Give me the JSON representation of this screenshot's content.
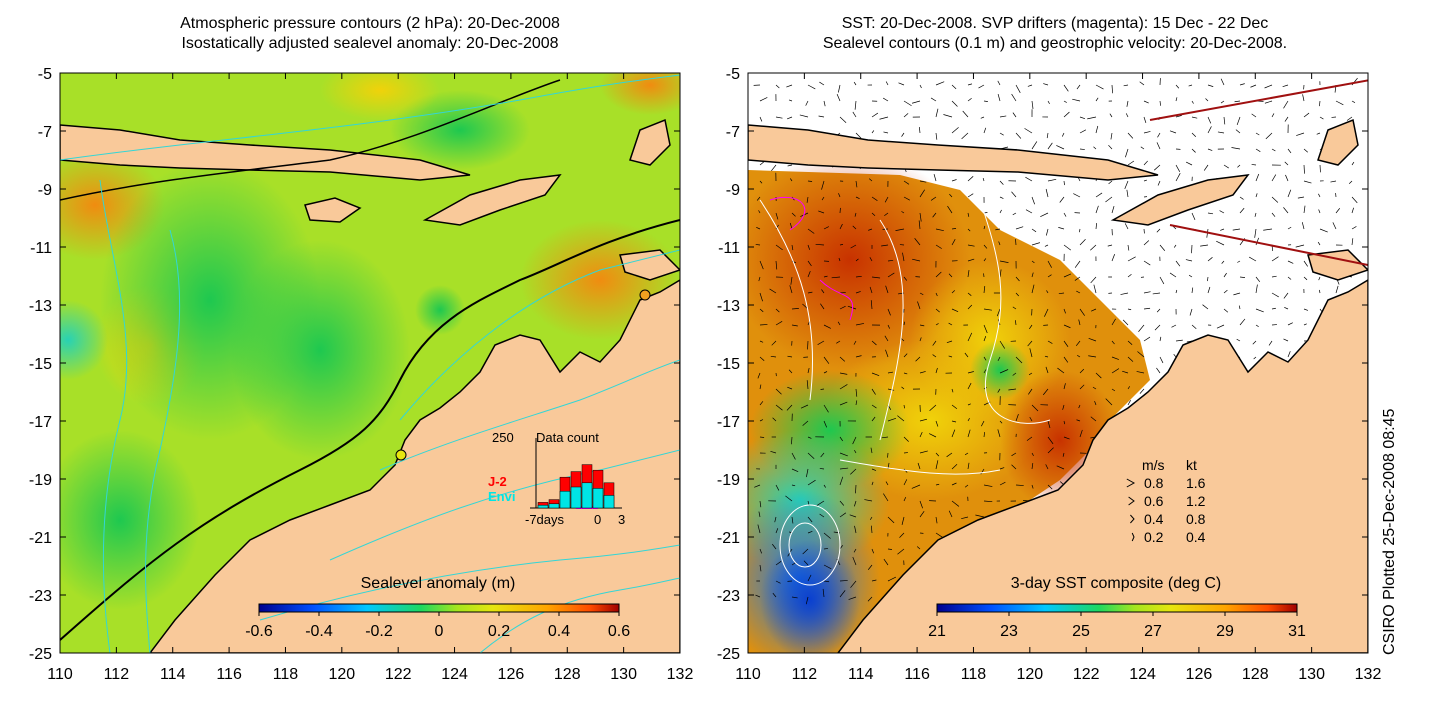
{
  "left_panel": {
    "title_line1": "Atmospheric pressure contours (2 hPa): 20-Dec-2008",
    "title_line2": "Isostatically adjusted sealevel anomaly: 20-Dec-2008",
    "x_ticks": [
      "110",
      "112",
      "114",
      "116",
      "118",
      "120",
      "122",
      "124",
      "126",
      "128",
      "130",
      "132"
    ],
    "y_ticks": [
      "-5",
      "-7",
      "-9",
      "-11",
      "-13",
      "-15",
      "-17",
      "-19",
      "-21",
      "-23",
      "-25"
    ],
    "colorbar_title": "Sealevel anomaly (m)",
    "colorbar_ticks": [
      "-0.6",
      "-0.4",
      "-0.2",
      "0",
      "0.2",
      "0.4",
      "0.6"
    ],
    "inset": {
      "max_label": "250",
      "title": "Data count",
      "series_j2": "J-2",
      "series_envi": "Envi",
      "x_start": "-7days",
      "x_zero": "0",
      "x_end": "3",
      "bars_j2": [
        20,
        30,
        110,
        130,
        155,
        135,
        90
      ],
      "bars_envi": [
        10,
        15,
        60,
        75,
        90,
        70,
        45
      ],
      "colors": {
        "j2": "#ff0000",
        "envi": "#00e5e5"
      }
    }
  },
  "right_panel": {
    "title_line1": "SST: 20-Dec-2008. SVP drifters (magenta): 15 Dec - 22 Dec",
    "title_line2": "Sealevel contours (0.1 m) and geostrophic velocity: 20-Dec-2008.",
    "x_ticks": [
      "110",
      "112",
      "114",
      "116",
      "118",
      "120",
      "122",
      "124",
      "126",
      "128",
      "130",
      "132"
    ],
    "y_ticks": [
      "-5",
      "-7",
      "-9",
      "-11",
      "-13",
      "-15",
      "-17",
      "-19",
      "-21",
      "-23",
      "-25"
    ],
    "colorbar_title": "3-day SST composite (deg C)",
    "colorbar_ticks": [
      "21",
      "23",
      "25",
      "27",
      "29",
      "31"
    ],
    "legend": {
      "header_ms": "m/s",
      "header_kt": "kt",
      "rows": [
        {
          "ms": "0.8",
          "kt": "1.6"
        },
        {
          "ms": "0.6",
          "kt": "1.2"
        },
        {
          "ms": "0.4",
          "kt": "0.8"
        },
        {
          "ms": "0.2",
          "kt": "0.4"
        }
      ]
    }
  },
  "credit": "CSIRO Plotted 25-Dec-2008 08:45",
  "colors": {
    "land": "#f9c99a",
    "coast": "#000000",
    "contour": "#33d6d6",
    "colormap": [
      "#00008f",
      "#0050ff",
      "#00c8ff",
      "#1ed860",
      "#8fe61e",
      "#e6e60f",
      "#ffa500",
      "#ff5a00",
      "#a00000"
    ]
  }
}
